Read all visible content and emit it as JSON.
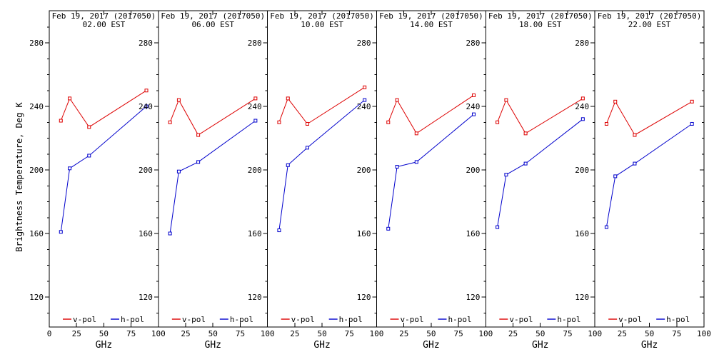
{
  "window": {
    "background": "#ffffff",
    "frame_color": "#000000"
  },
  "y_label": "Brightness Temperature, Deg K",
  "x_label": "GHz",
  "colors": {
    "v_pol": "#dd0000",
    "h_pol": "#0000cc",
    "axis": "#000000",
    "text": "#000000"
  },
  "legend": {
    "v_label": "v-pol",
    "h_label": "h-pol",
    "position": "bottom-inside"
  },
  "axes": {
    "y_major_ticks": [
      120,
      160,
      200,
      240,
      280
    ],
    "y_minor_step": 10,
    "y_range": [
      100,
      300
    ],
    "x_major_ticks": [
      0,
      25,
      50,
      75,
      100
    ],
    "x_range": [
      0,
      100
    ],
    "grid": "off"
  },
  "chart_data": [
    {
      "type": "line",
      "title": "Feb 19, 2017 (2017050)",
      "subtitle": "02.00 EST",
      "xlabel": "GHz",
      "ylabel": "Brightness Temperature, Deg K",
      "x": [
        10.65,
        18.7,
        36.5,
        89.0
      ],
      "series": [
        {
          "name": "v-pol",
          "color_key": "v_pol",
          "values": [
            231,
            245,
            227,
            250
          ]
        },
        {
          "name": "h-pol",
          "color_key": "h_pol",
          "values": [
            161,
            201,
            209,
            240
          ]
        }
      ]
    },
    {
      "type": "line",
      "title": "Feb 19, 2017 (2017050)",
      "subtitle": "06.00 EST",
      "xlabel": "GHz",
      "ylabel": "Brightness Temperature, Deg K",
      "x": [
        10.65,
        18.7,
        36.5,
        89.0
      ],
      "series": [
        {
          "name": "v-pol",
          "color_key": "v_pol",
          "values": [
            230,
            244,
            222,
            245
          ]
        },
        {
          "name": "h-pol",
          "color_key": "h_pol",
          "values": [
            160,
            199,
            205,
            231
          ]
        }
      ]
    },
    {
      "type": "line",
      "title": "Feb 19, 2017 (2017050)",
      "subtitle": "10.00 EST",
      "xlabel": "GHz",
      "ylabel": "Brightness Temperature, Deg K",
      "x": [
        10.65,
        18.7,
        36.5,
        89.0
      ],
      "series": [
        {
          "name": "v-pol",
          "color_key": "v_pol",
          "values": [
            230,
            245,
            229,
            252
          ]
        },
        {
          "name": "h-pol",
          "color_key": "h_pol",
          "values": [
            162,
            203,
            214,
            244
          ]
        }
      ]
    },
    {
      "type": "line",
      "title": "Feb 19, 2017 (2017050)",
      "subtitle": "14.00 EST",
      "xlabel": "GHz",
      "ylabel": "Brightness Temperature, Deg K",
      "x": [
        10.65,
        18.7,
        36.5,
        89.0
      ],
      "series": [
        {
          "name": "v-pol",
          "color_key": "v_pol",
          "values": [
            230,
            244,
            223,
            247
          ]
        },
        {
          "name": "h-pol",
          "color_key": "h_pol",
          "values": [
            163,
            202,
            205,
            235
          ]
        }
      ]
    },
    {
      "type": "line",
      "title": "Feb 19, 2017 (2017050)",
      "subtitle": "18.00 EST",
      "xlabel": "GHz",
      "ylabel": "Brightness Temperature, Deg K",
      "x": [
        10.65,
        18.7,
        36.5,
        89.0
      ],
      "series": [
        {
          "name": "v-pol",
          "color_key": "v_pol",
          "values": [
            230,
            244,
            223,
            245
          ]
        },
        {
          "name": "h-pol",
          "color_key": "h_pol",
          "values": [
            164,
            197,
            204,
            232
          ]
        }
      ]
    },
    {
      "type": "line",
      "title": "Feb 19, 2017 (2017050)",
      "subtitle": "22.00 EST",
      "xlabel": "GHz",
      "ylabel": "Brightness Temperature, Deg K",
      "x": [
        10.65,
        18.7,
        36.5,
        89.0
      ],
      "series": [
        {
          "name": "v-pol",
          "color_key": "v_pol",
          "values": [
            229,
            243,
            222,
            243
          ]
        },
        {
          "name": "h-pol",
          "color_key": "h_pol",
          "values": [
            164,
            196,
            204,
            229
          ]
        }
      ]
    }
  ]
}
